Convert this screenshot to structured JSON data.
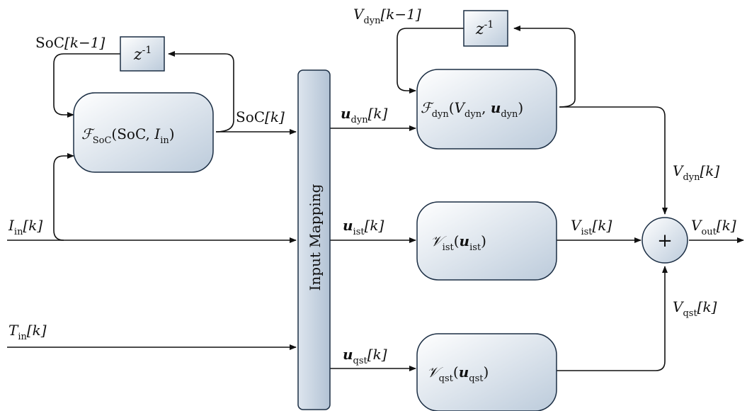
{
  "mapping_label": "Input Mapping",
  "blocks": {
    "soc_function": {
      "symbol": "ℱ",
      "sub": "SoC",
      "open": "(SoC, ",
      "arg_var": "I",
      "arg_sub": "in",
      "close": ")"
    },
    "dyn_function": {
      "symbol": "ℱ",
      "sub": "dyn",
      "open": "(",
      "arg1_var": "V",
      "arg1_sub": "dyn",
      "sep": ", ",
      "arg2_var": "u",
      "arg2_sub": "dyn",
      "close": ")"
    },
    "ist_function": {
      "symbol": "𝒱",
      "sub": "ist",
      "open": "(",
      "arg_var": "u",
      "arg_sub": "ist",
      "close": ")"
    },
    "qst_function": {
      "symbol": "𝒱",
      "sub": "qst",
      "open": "(",
      "arg_var": "u",
      "arg_sub": "qst",
      "close": ")"
    },
    "delay_soc": {
      "base": "z",
      "exp": "-1"
    },
    "delay_dyn": {
      "base": "z",
      "exp": "-1"
    },
    "sum": {
      "symbol": "+"
    }
  },
  "signals": {
    "soc_prev": {
      "name": "SoC",
      "index": "[k−1]"
    },
    "soc_k": {
      "name": "SoC",
      "index": "[k]"
    },
    "vdyn_prev": {
      "var": "V",
      "sub": "dyn",
      "index": "[k−1]"
    },
    "i_in": {
      "var": "I",
      "sub": "in",
      "index": "[k]"
    },
    "t_in": {
      "var": "T",
      "sub": "in",
      "index": "[k]"
    },
    "u_dyn": {
      "var": "u",
      "sub": "dyn",
      "index": "[k]"
    },
    "u_ist": {
      "var": "u",
      "sub": "ist",
      "index": "[k]"
    },
    "u_qst": {
      "var": "u",
      "sub": "qst",
      "index": "[k]"
    },
    "v_dyn": {
      "var": "V",
      "sub": "dyn",
      "index": "[k]"
    },
    "v_ist": {
      "var": "V",
      "sub": "ist",
      "index": "[k]"
    },
    "v_qst": {
      "var": "V",
      "sub": "qst",
      "index": "[k]"
    },
    "v_out": {
      "var": "V",
      "sub": "out",
      "index": "[k]"
    }
  },
  "colors": {
    "block_light": "#ffffff",
    "block_dark": "#bccbdb",
    "stroke": "#1b2e44",
    "wire": "#111111"
  }
}
